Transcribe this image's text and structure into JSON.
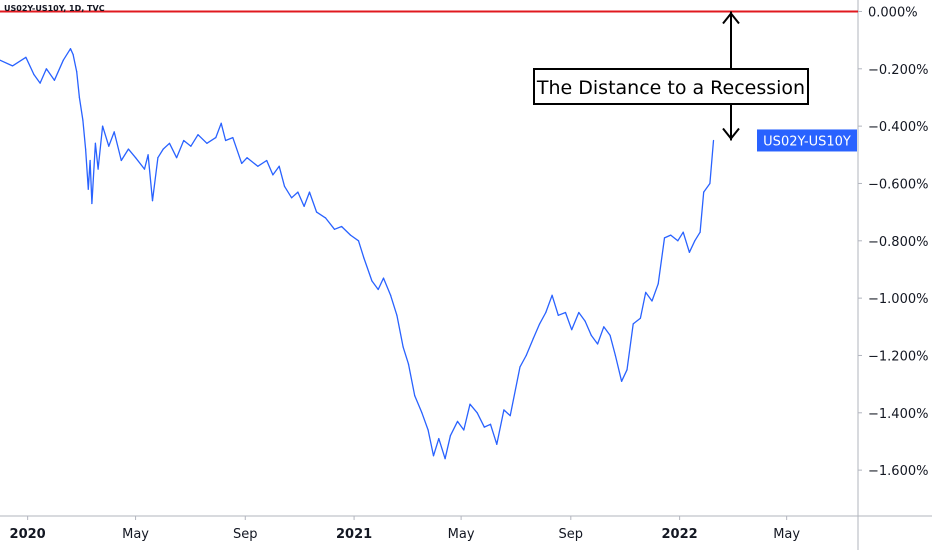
{
  "header": {
    "symbol_title": "US02Y-US10Y, 1D, TVC"
  },
  "colors": {
    "series": "#2962ff",
    "zero_line": "#e0191f",
    "axis_text": "#131722",
    "badge_bg": "#2962ff",
    "badge_text": "#ffffff",
    "axis_line": "#b2b5be"
  },
  "chart_data": {
    "type": "line",
    "series": [
      {
        "name": "US02Y-US10Y",
        "points": [
          [
            "2019-12-01",
            -0.17
          ],
          [
            "2019-12-15",
            -0.19
          ],
          [
            "2019-12-30",
            -0.16
          ],
          [
            "2020-01-08",
            -0.22
          ],
          [
            "2020-01-15",
            -0.25
          ],
          [
            "2020-01-22",
            -0.2
          ],
          [
            "2020-01-31",
            -0.24
          ],
          [
            "2020-02-10",
            -0.17
          ],
          [
            "2020-02-18",
            -0.13
          ],
          [
            "2020-02-21",
            -0.15
          ],
          [
            "2020-02-25",
            -0.21
          ],
          [
            "2020-02-28",
            -0.3
          ],
          [
            "2020-03-03",
            -0.38
          ],
          [
            "2020-03-06",
            -0.48
          ],
          [
            "2020-03-09",
            -0.62
          ],
          [
            "2020-03-11",
            -0.52
          ],
          [
            "2020-03-13",
            -0.67
          ],
          [
            "2020-03-17",
            -0.46
          ],
          [
            "2020-03-20",
            -0.55
          ],
          [
            "2020-03-25",
            -0.4
          ],
          [
            "2020-04-01",
            -0.47
          ],
          [
            "2020-04-07",
            -0.42
          ],
          [
            "2020-04-15",
            -0.52
          ],
          [
            "2020-04-23",
            -0.48
          ],
          [
            "2020-05-01",
            -0.51
          ],
          [
            "2020-05-11",
            -0.55
          ],
          [
            "2020-05-15",
            -0.5
          ],
          [
            "2020-05-20",
            -0.66
          ],
          [
            "2020-05-26",
            -0.51
          ],
          [
            "2020-06-01",
            -0.48
          ],
          [
            "2020-06-08",
            -0.46
          ],
          [
            "2020-06-16",
            -0.51
          ],
          [
            "2020-06-24",
            -0.45
          ],
          [
            "2020-07-02",
            -0.47
          ],
          [
            "2020-07-10",
            -0.43
          ],
          [
            "2020-07-20",
            -0.46
          ],
          [
            "2020-07-30",
            -0.44
          ],
          [
            "2020-08-05",
            -0.39
          ],
          [
            "2020-08-10",
            -0.45
          ],
          [
            "2020-08-18",
            -0.44
          ],
          [
            "2020-08-28",
            -0.53
          ],
          [
            "2020-09-03",
            -0.51
          ],
          [
            "2020-09-15",
            -0.54
          ],
          [
            "2020-09-25",
            -0.52
          ],
          [
            "2020-10-02",
            -0.57
          ],
          [
            "2020-10-09",
            -0.54
          ],
          [
            "2020-10-15",
            -0.61
          ],
          [
            "2020-10-23",
            -0.65
          ],
          [
            "2020-10-30",
            -0.63
          ],
          [
            "2020-11-06",
            -0.68
          ],
          [
            "2020-11-12",
            -0.63
          ],
          [
            "2020-11-20",
            -0.7
          ],
          [
            "2020-11-30",
            -0.72
          ],
          [
            "2020-12-10",
            -0.76
          ],
          [
            "2020-12-18",
            -0.75
          ],
          [
            "2020-12-28",
            -0.78
          ],
          [
            "2021-01-06",
            -0.8
          ],
          [
            "2021-01-12",
            -0.86
          ],
          [
            "2021-01-21",
            -0.94
          ],
          [
            "2021-01-28",
            -0.97
          ],
          [
            "2021-02-03",
            -0.93
          ],
          [
            "2021-02-11",
            -0.99
          ],
          [
            "2021-02-18",
            -1.06
          ],
          [
            "2021-02-25",
            -1.17
          ],
          [
            "2021-03-03",
            -1.23
          ],
          [
            "2021-03-10",
            -1.34
          ],
          [
            "2021-03-18",
            -1.4
          ],
          [
            "2021-03-25",
            -1.46
          ],
          [
            "2021-03-31",
            -1.55
          ],
          [
            "2021-04-06",
            -1.49
          ],
          [
            "2021-04-13",
            -1.56
          ],
          [
            "2021-04-19",
            -1.48
          ],
          [
            "2021-04-27",
            -1.43
          ],
          [
            "2021-05-04",
            -1.46
          ],
          [
            "2021-05-11",
            -1.37
          ],
          [
            "2021-05-19",
            -1.4
          ],
          [
            "2021-05-27",
            -1.45
          ],
          [
            "2021-06-03",
            -1.44
          ],
          [
            "2021-06-10",
            -1.51
          ],
          [
            "2021-06-18",
            -1.39
          ],
          [
            "2021-06-25",
            -1.41
          ],
          [
            "2021-07-06",
            -1.24
          ],
          [
            "2021-07-13",
            -1.2
          ],
          [
            "2021-07-21",
            -1.14
          ],
          [
            "2021-07-28",
            -1.09
          ],
          [
            "2021-08-04",
            -1.05
          ],
          [
            "2021-08-11",
            -0.99
          ],
          [
            "2021-08-18",
            -1.06
          ],
          [
            "2021-08-26",
            -1.05
          ],
          [
            "2021-09-02",
            -1.11
          ],
          [
            "2021-09-10",
            -1.05
          ],
          [
            "2021-09-17",
            -1.08
          ],
          [
            "2021-09-24",
            -1.13
          ],
          [
            "2021-10-01",
            -1.16
          ],
          [
            "2021-10-08",
            -1.1
          ],
          [
            "2021-10-15",
            -1.13
          ],
          [
            "2021-10-21",
            -1.2
          ],
          [
            "2021-10-28",
            -1.29
          ],
          [
            "2021-11-03",
            -1.25
          ],
          [
            "2021-11-10",
            -1.09
          ],
          [
            "2021-11-18",
            -1.07
          ],
          [
            "2021-11-24",
            -0.98
          ],
          [
            "2021-12-01",
            -1.01
          ],
          [
            "2021-12-08",
            -0.95
          ],
          [
            "2021-12-15",
            -0.79
          ],
          [
            "2021-12-22",
            -0.78
          ],
          [
            "2021-12-30",
            -0.8
          ],
          [
            "2022-01-05",
            -0.77
          ],
          [
            "2022-01-12",
            -0.84
          ],
          [
            "2022-01-18",
            -0.8
          ],
          [
            "2022-01-24",
            -0.77
          ],
          [
            "2022-01-28",
            -0.63
          ],
          [
            "2022-02-04",
            -0.6
          ],
          [
            "2022-02-08",
            -0.45
          ]
        ]
      }
    ],
    "y_axis": {
      "ticks": [
        0.0,
        -0.2,
        -0.4,
        -0.6,
        -0.8,
        -1.0,
        -1.2,
        -1.4,
        -1.6
      ],
      "tick_labels": [
        "0.000%",
        "−0.200%",
        "−0.400%",
        "−0.600%",
        "−0.800%",
        "−1.000%",
        "−1.200%",
        "−1.400%",
        "−1.600%"
      ],
      "range": [
        -1.76,
        0.04
      ]
    },
    "x_axis": {
      "range": [
        "2019-12-01",
        "2022-07-20"
      ],
      "ticks": [
        {
          "date": "2020-01-01",
          "label": "2020",
          "bold": true
        },
        {
          "date": "2020-05-01",
          "label": "May",
          "bold": false
        },
        {
          "date": "2020-09-01",
          "label": "Sep",
          "bold": false
        },
        {
          "date": "2021-01-01",
          "label": "2021",
          "bold": true
        },
        {
          "date": "2021-05-01",
          "label": "May",
          "bold": false
        },
        {
          "date": "2021-09-01",
          "label": "Sep",
          "bold": false
        },
        {
          "date": "2022-01-01",
          "label": "2022",
          "bold": true
        },
        {
          "date": "2022-05-01",
          "label": "May",
          "bold": false
        }
      ]
    },
    "reference_line": {
      "y": 0.0
    },
    "last_value_badge": "US02Y-US10Y",
    "annotation": {
      "text": "The Distance to a Recession",
      "arrow_from": 0.0,
      "arrow_to": -0.45
    }
  }
}
